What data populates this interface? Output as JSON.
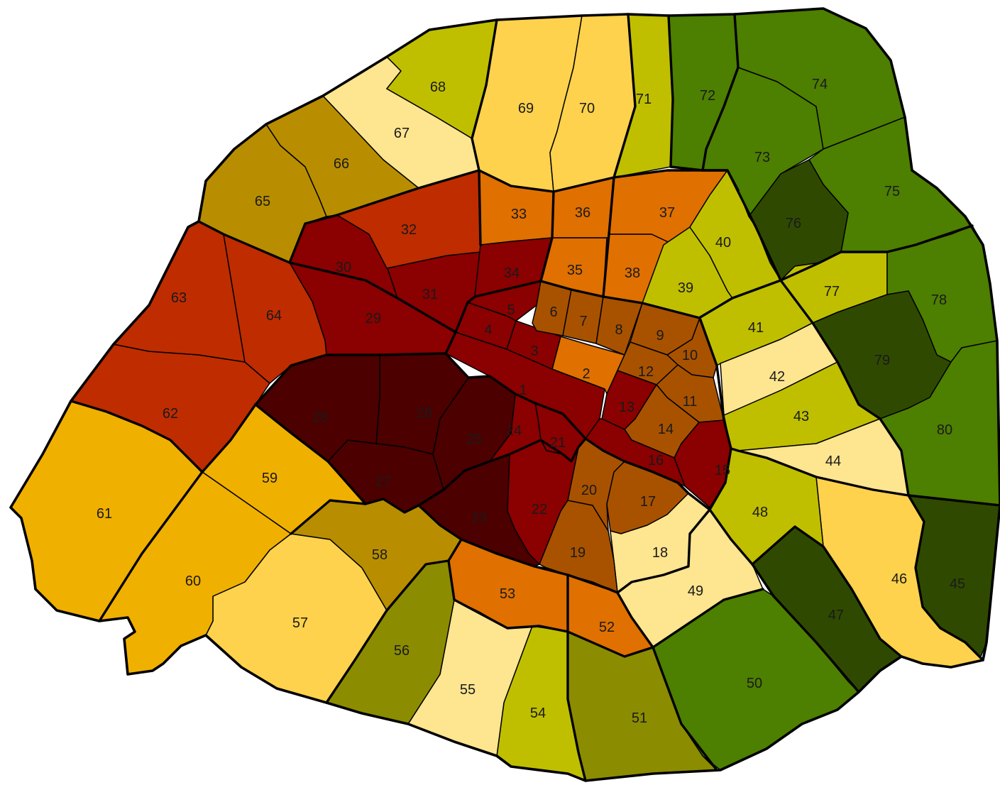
{
  "palette": {
    "c1": "#4c0000",
    "c2": "#8b0000",
    "c3": "#bf2c00",
    "c4": "#a85200",
    "c5": "#e07000",
    "c6": "#f0b000",
    "c7": "#fed24c",
    "c8": "#fee590",
    "c9": "#bfbf00",
    "c10": "#b88e00",
    "c11": "#8c8c00",
    "c12": "#4d7f00",
    "c13": "#2f4a00"
  },
  "quartiers": [
    {
      "label": "1",
      "color": "c2"
    },
    {
      "label": "2",
      "color": "c5"
    },
    {
      "label": "3",
      "color": "c2"
    },
    {
      "label": "4",
      "color": "c2"
    },
    {
      "label": "5",
      "color": "c2"
    },
    {
      "label": "6",
      "color": "c4"
    },
    {
      "label": "7",
      "color": "c4"
    },
    {
      "label": "8",
      "color": "c4"
    },
    {
      "label": "9",
      "color": "c4"
    },
    {
      "label": "10",
      "color": "c4"
    },
    {
      "label": "11",
      "color": "c4"
    },
    {
      "label": "12",
      "color": "c4"
    },
    {
      "label": "13",
      "color": "c2"
    },
    {
      "label": "14",
      "color": "c4"
    },
    {
      "label": "15",
      "color": "c2"
    },
    {
      "label": "16",
      "color": "c2"
    },
    {
      "label": "17",
      "color": "c4"
    },
    {
      "label": "18",
      "color": "c8"
    },
    {
      "label": "19",
      "color": "c4"
    },
    {
      "label": "20",
      "color": "c4"
    },
    {
      "label": "21",
      "color": "c2"
    },
    {
      "label": "22",
      "color": "c2"
    },
    {
      "label": "23",
      "color": "c1"
    },
    {
      "label": "24",
      "color": "c2"
    },
    {
      "label": "25",
      "color": "c1"
    },
    {
      "label": "26",
      "color": "c1"
    },
    {
      "label": "27",
      "color": "c1"
    },
    {
      "label": "28",
      "color": "c1"
    },
    {
      "label": "29",
      "color": "c2"
    },
    {
      "label": "30",
      "color": "c2"
    },
    {
      "label": "31",
      "color": "c2"
    },
    {
      "label": "32",
      "color": "c3"
    },
    {
      "label": "33",
      "color": "c5"
    },
    {
      "label": "34",
      "color": "c2"
    },
    {
      "label": "35",
      "color": "c5"
    },
    {
      "label": "36",
      "color": "c5"
    },
    {
      "label": "37",
      "color": "c5"
    },
    {
      "label": "38",
      "color": "c5"
    },
    {
      "label": "39",
      "color": "c9"
    },
    {
      "label": "40",
      "color": "c9"
    },
    {
      "label": "41",
      "color": "c9"
    },
    {
      "label": "42",
      "color": "c8"
    },
    {
      "label": "43",
      "color": "c9"
    },
    {
      "label": "44",
      "color": "c8"
    },
    {
      "label": "45",
      "color": "c13"
    },
    {
      "label": "46",
      "color": "c7"
    },
    {
      "label": "47",
      "color": "c13"
    },
    {
      "label": "48",
      "color": "c9"
    },
    {
      "label": "49",
      "color": "c8"
    },
    {
      "label": "50",
      "color": "c12"
    },
    {
      "label": "51",
      "color": "c11"
    },
    {
      "label": "52",
      "color": "c5"
    },
    {
      "label": "53",
      "color": "c5"
    },
    {
      "label": "54",
      "color": "c9"
    },
    {
      "label": "55",
      "color": "c8"
    },
    {
      "label": "56",
      "color": "c11"
    },
    {
      "label": "57",
      "color": "c7"
    },
    {
      "label": "58",
      "color": "c10"
    },
    {
      "label": "59",
      "color": "c6"
    },
    {
      "label": "60",
      "color": "c6"
    },
    {
      "label": "61",
      "color": "c6"
    },
    {
      "label": "62",
      "color": "c3"
    },
    {
      "label": "63",
      "color": "c3"
    },
    {
      "label": "64",
      "color": "c3"
    },
    {
      "label": "65",
      "color": "c10"
    },
    {
      "label": "66",
      "color": "c10"
    },
    {
      "label": "67",
      "color": "c8"
    },
    {
      "label": "68",
      "color": "c9"
    },
    {
      "label": "69",
      "color": "c7"
    },
    {
      "label": "70",
      "color": "c7"
    },
    {
      "label": "71",
      "color": "c9"
    },
    {
      "label": "72",
      "color": "c12"
    },
    {
      "label": "73",
      "color": "c12"
    },
    {
      "label": "74",
      "color": "c12"
    },
    {
      "label": "75",
      "color": "c12"
    },
    {
      "label": "76",
      "color": "c13"
    },
    {
      "label": "77",
      "color": "c9"
    },
    {
      "label": "78",
      "color": "c12"
    },
    {
      "label": "79",
      "color": "c13"
    },
    {
      "label": "80",
      "color": "c12"
    }
  ]
}
